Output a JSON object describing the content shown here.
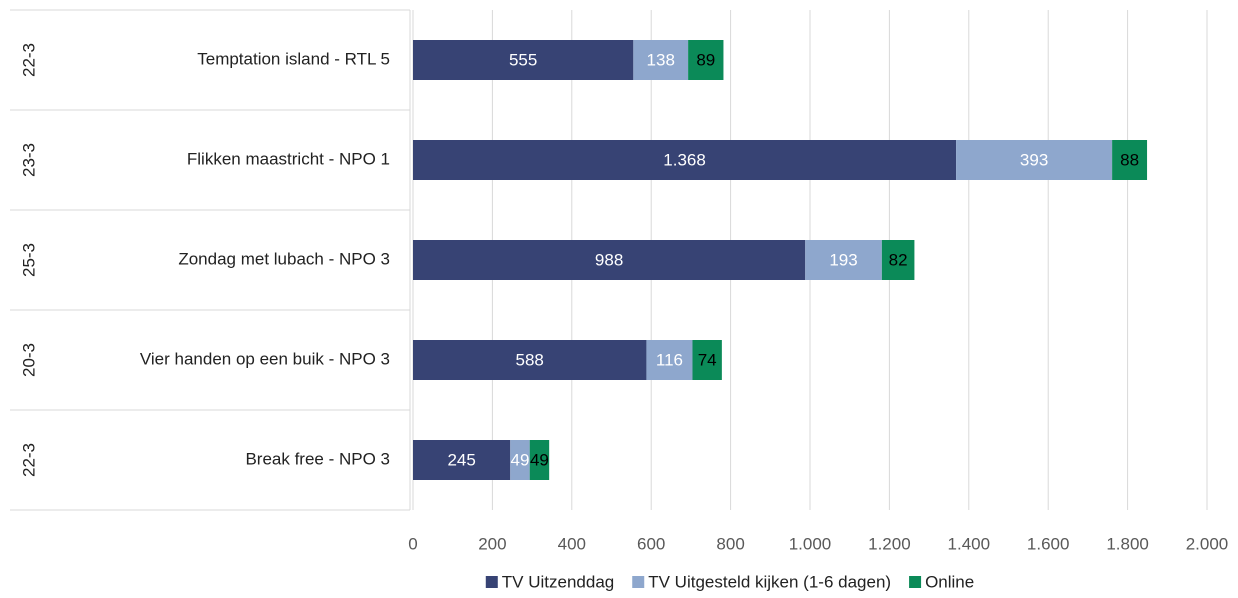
{
  "chart_data": {
    "type": "stacked_barh",
    "categories": [
      "Temptation island - RTL 5",
      "Flikken maastricht - NPO 1",
      "Zondag met lubach - NPO 3",
      "Vier handen op een buik - NPO 3",
      "Break free - NPO 3"
    ],
    "groups": [
      "22-3",
      "23-3",
      "25-3",
      "20-3",
      "22-3"
    ],
    "series": [
      {
        "name": "TV Uitzenddag",
        "color": "#374374",
        "values": [
          555,
          1368,
          988,
          588,
          245
        ],
        "value_labels": [
          "555",
          "1.368",
          "988",
          "588",
          "245"
        ]
      },
      {
        "name": "TV Uitgesteld kijken (1-6 dagen)",
        "color": "#8ea7cd",
        "values": [
          138,
          393,
          193,
          116,
          49
        ]
      },
      {
        "name": "Online",
        "color": "#0b8a58",
        "values": [
          89,
          88,
          82,
          74,
          49
        ]
      }
    ],
    "xlim": [
      0,
      2000
    ],
    "xticks": [
      0,
      200,
      400,
      600,
      800,
      {
        "value": 1000,
        "label": "1.000"
      },
      {
        "value": 1200,
        "label": "1.200"
      },
      {
        "value": 1400,
        "label": "1.400"
      },
      {
        "value": 1600,
        "label": "1.600"
      },
      {
        "value": 1800,
        "label": "1.800"
      },
      {
        "value": 2000,
        "label": "2.000"
      }
    ],
    "grid": true,
    "legend": "bottom"
  }
}
